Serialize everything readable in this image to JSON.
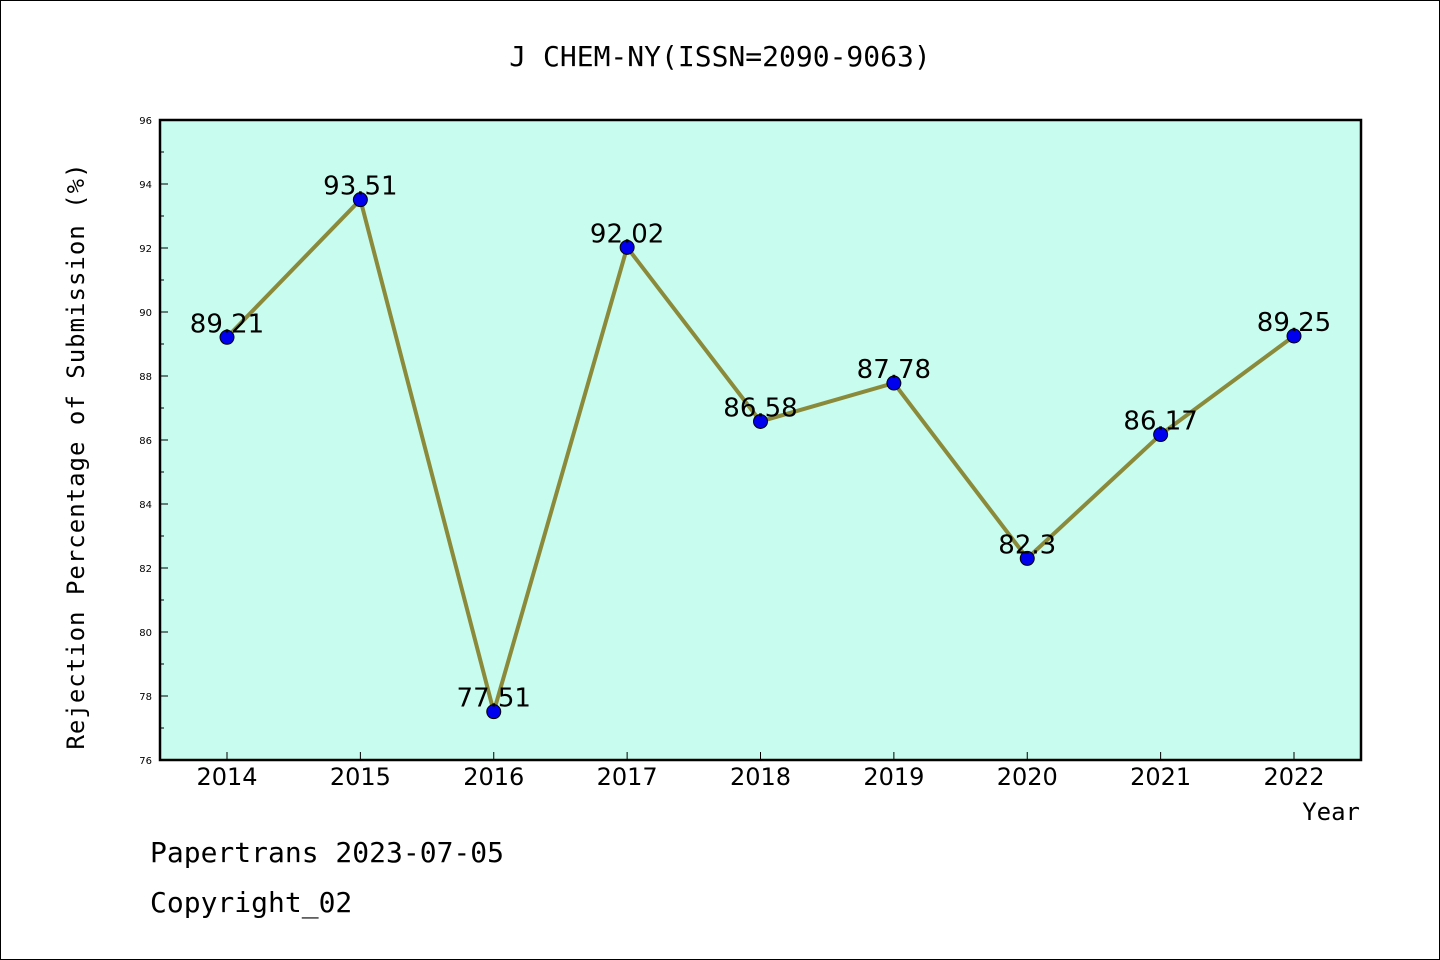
{
  "chart_data": {
    "type": "line",
    "title": "J CHEM-NY(ISSN=2090-9063)",
    "xlabel": "Year",
    "ylabel": "Rejection Percentage of Submission (%)",
    "categories": [
      "2014",
      "2015",
      "2016",
      "2017",
      "2018",
      "2019",
      "2020",
      "2021",
      "2022"
    ],
    "series": [
      {
        "values": [
          89.21,
          93.51,
          77.51,
          92.02,
          86.58,
          87.78,
          82.3,
          86.17,
          89.25
        ]
      }
    ],
    "data_labels": [
      "89.21",
      "93.51",
      "77.51",
      "92.02",
      "86.58",
      "87.78",
      "82.3",
      "86.17",
      "89.25"
    ],
    "ylim": [
      76,
      96
    ],
    "yticks": [
      76,
      78,
      80,
      82,
      84,
      86,
      88,
      90,
      92,
      94,
      96
    ],
    "grid": false,
    "legend": "none",
    "colors": {
      "plot_background": "#c8fcee",
      "line": "#8b8a3a",
      "marker": "#0000ee"
    }
  },
  "footer": {
    "line1": "Papertrans 2023-07-05",
    "line2": "Copyright_02"
  }
}
